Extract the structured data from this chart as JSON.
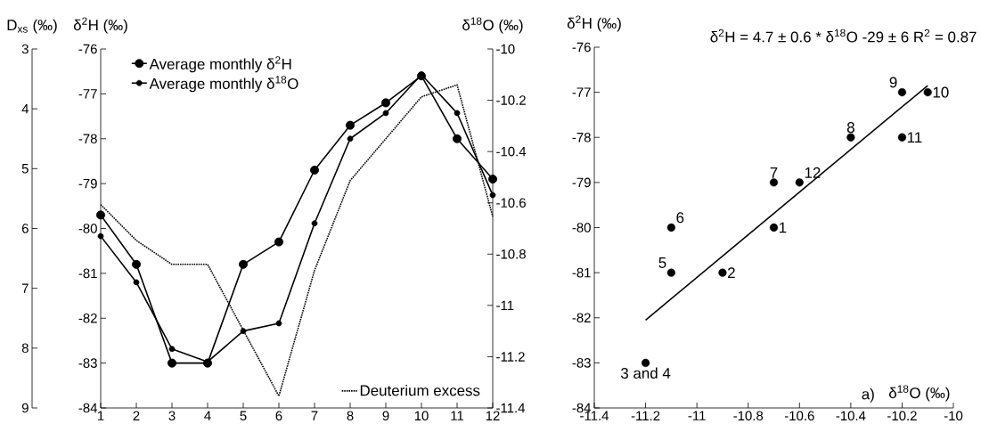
{
  "chart_data": [
    {
      "type": "line",
      "x": [
        1,
        2,
        3,
        4,
        5,
        6,
        7,
        8,
        9,
        10,
        11,
        12
      ],
      "xlim": [
        1,
        12
      ],
      "xticks": [
        1,
        2,
        3,
        4,
        5,
        6,
        7,
        8,
        9,
        10,
        11,
        12
      ],
      "ylabel": "δ$^{2}$H (‰)",
      "y2label": "δ$^{18}$O (‰)",
      "y3label": "D$_{xs}$ (‰)",
      "ylim": [
        -84,
        -76
      ],
      "yticks": [
        -84,
        -83,
        -82,
        -81,
        -80,
        -79,
        -78,
        -77,
        -76
      ],
      "y2lim": [
        -11.4,
        -10
      ],
      "y2ticks": [
        -11.4,
        -11.2,
        -11,
        -10.8,
        -10.6,
        -10.4,
        -10.2,
        -10
      ],
      "y3lim": [
        9,
        3
      ],
      "y3ticks": [
        3,
        4,
        5,
        6,
        7,
        8,
        9
      ],
      "legend": "top left",
      "series": [
        {
          "name": "Average monthly δ$^{2}$H",
          "color": "#000000",
          "marker": "circle",
          "values": [
            -79.7,
            -80.8,
            -83.0,
            -83.0,
            -80.8,
            -80.3,
            -78.7,
            -77.7,
            -77.2,
            -76.6,
            -78.0,
            -78.9
          ]
        },
        {
          "name": "Average monthly δ$^{18}$O",
          "color": "#000000",
          "marker": "circle",
          "axis": "y2",
          "values": [
            -10.73,
            -10.91,
            -11.17,
            -11.22,
            -11.1,
            -11.07,
            -10.68,
            -10.35,
            -10.25,
            -10.1,
            -10.25,
            -10.57
          ]
        },
        {
          "name": "Deuterium excess",
          "color": "#000000",
          "marker": "none",
          "line_style": "dotted",
          "axis": "y3",
          "values": [
            5.6,
            6.2,
            6.6,
            6.6,
            7.7,
            8.8,
            6.7,
            5.2,
            4.5,
            3.8,
            3.6,
            5.8
          ]
        }
      ]
    },
    {
      "type": "scatter",
      "title": "δ$^{2}$H = 4.7 ± 0.6 * δ$^{18}$O -29 ± 6  R$^{2}$ = 0.87",
      "xlabel": "δ$^{18}$O (‰)",
      "ylabel": "δ$^{2}$H (‰)",
      "xlim": [
        -11.4,
        -10
      ],
      "xticks": [
        -11.4,
        -11.2,
        -11,
        -10.8,
        -10.6,
        -10.4,
        -10.2,
        -10
      ],
      "ylim": [
        -84,
        -76
      ],
      "yticks": [
        -84,
        -83,
        -82,
        -81,
        -80,
        -79,
        -78,
        -77,
        -76
      ],
      "series": [
        {
          "type": "scatter",
          "color": "#000000",
          "marker": "circle",
          "x": [
            -10.7,
            -10.9,
            -11.2,
            -11.1,
            -11.1,
            -10.7,
            -10.4,
            -10.2,
            -10.1,
            -10.2,
            -10.6
          ],
          "values": [
            -80,
            -81,
            -83,
            -81,
            -80,
            -79,
            -78,
            -77,
            -77,
            -78,
            -79
          ]
        },
        {
          "type": "line",
          "color": "#000000",
          "marker": "none",
          "x": [
            -11.2,
            -10.1
          ],
          "values": [
            -82.05,
            -76.85
          ]
        }
      ],
      "annotations": [
        {
          "text": "1",
          "x": -10.7,
          "y": -80
        },
        {
          "text": "2",
          "x": -10.9,
          "y": -81
        },
        {
          "text": "3 and 4",
          "x": -11.2,
          "y": -83
        },
        {
          "text": "5",
          "x": -11.1,
          "y": -81
        },
        {
          "text": "6",
          "x": -11.1,
          "y": -80
        },
        {
          "text": "7",
          "x": -10.7,
          "y": -79
        },
        {
          "text": "8",
          "x": -10.4,
          "y": -78
        },
        {
          "text": "9",
          "x": -10.2,
          "y": -77
        },
        {
          "text": "10",
          "x": -10.1,
          "y": -77
        },
        {
          "text": "11",
          "x": -10.2,
          "y": -78
        },
        {
          "text": "12",
          "x": -10.6,
          "y": -79
        },
        "a)"
      ]
    }
  ]
}
